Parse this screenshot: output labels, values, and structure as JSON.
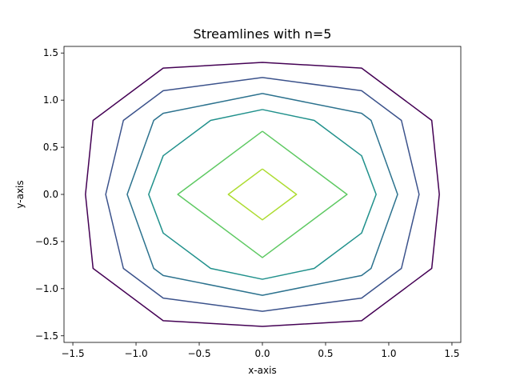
{
  "chart_data": {
    "type": "line",
    "title": "Streamlines with n=5",
    "xlabel": "x-axis",
    "ylabel": "y-axis",
    "xlim": [
      -1.57,
      1.57
    ],
    "ylim": [
      -1.57,
      1.57
    ],
    "xticks": [
      -1.5,
      -1.0,
      -0.5,
      0.0,
      0.5,
      1.0,
      1.5
    ],
    "yticks": [
      -1.5,
      -1.0,
      -0.5,
      0.0,
      0.5,
      1.0,
      1.5
    ],
    "xtick_labels": [
      "−1.5",
      "−1.0",
      "−0.5",
      "0.0",
      "0.5",
      "1.0",
      "1.5"
    ],
    "ytick_labels": [
      "−1.5",
      "−1.0",
      "−0.5",
      "0.0",
      "0.5",
      "1.0",
      "1.5"
    ],
    "grid": false,
    "series": [
      {
        "color": "#440154",
        "x": [
          0,
          0.785,
          1.34,
          1.4,
          1.34,
          0.785,
          0,
          -0.785,
          -1.34,
          -1.4,
          -1.34,
          -0.785,
          0
        ],
        "y": [
          1.4,
          1.34,
          0.785,
          0,
          -0.785,
          -1.34,
          -1.4,
          -1.34,
          -0.785,
          0,
          0.785,
          1.34,
          1.4
        ]
      },
      {
        "color": "#3b528b",
        "x": [
          0,
          0.785,
          1.1,
          1.24,
          1.1,
          0.785,
          0,
          -0.785,
          -1.1,
          -1.24,
          -1.1,
          -0.785,
          0
        ],
        "y": [
          1.24,
          1.1,
          0.785,
          0,
          -0.785,
          -1.1,
          -1.24,
          -1.1,
          -0.785,
          0,
          0.785,
          1.1,
          1.24
        ]
      },
      {
        "color": "#2c728e",
        "x": [
          0,
          0.785,
          0.86,
          1.07,
          0.86,
          0.785,
          0,
          -0.785,
          -0.86,
          -1.07,
          -0.86,
          -0.785,
          0
        ],
        "y": [
          1.07,
          0.86,
          0.785,
          0,
          -0.785,
          -0.86,
          -1.07,
          -0.86,
          -0.785,
          0,
          0.785,
          0.86,
          1.07
        ]
      },
      {
        "color": "#21918c",
        "x": [
          0,
          0.41,
          0.785,
          0.9,
          0.785,
          0.41,
          0,
          -0.41,
          -0.785,
          -0.9,
          -0.785,
          -0.41,
          0
        ],
        "y": [
          0.9,
          0.785,
          0.41,
          0,
          -0.41,
          -0.785,
          -0.9,
          -0.785,
          -0.41,
          0,
          0.41,
          0.785,
          0.9
        ]
      },
      {
        "color": "#5ec962",
        "x": [
          0,
          0.67,
          0,
          -0.67,
          0
        ],
        "y": [
          0.67,
          0,
          -0.67,
          0,
          0.67
        ]
      },
      {
        "color": "#addc30",
        "x": [
          0,
          0.27,
          0,
          -0.27,
          0
        ],
        "y": [
          0.27,
          0,
          -0.27,
          0,
          0.27
        ]
      }
    ]
  }
}
